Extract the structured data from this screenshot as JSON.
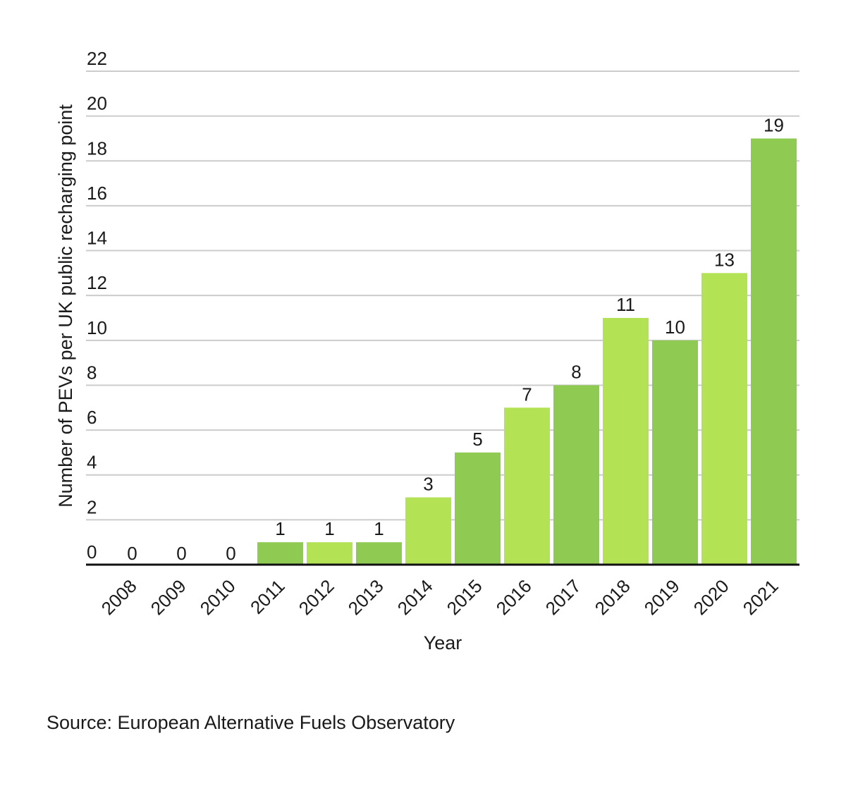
{
  "chart_data": {
    "type": "bar",
    "categories": [
      "2008",
      "2009",
      "2010",
      "2011",
      "2012",
      "2013",
      "2014",
      "2015",
      "2016",
      "2017",
      "2018",
      "2019",
      "2020",
      "2021"
    ],
    "values": [
      0,
      0,
      0,
      1,
      1,
      1,
      3,
      5,
      7,
      8,
      11,
      10,
      13,
      19
    ],
    "xlabel": "Year",
    "ylabel": "Number of PEVs per UK public recharging point",
    "ylim": [
      0,
      22
    ],
    "yticks": [
      0,
      2,
      4,
      6,
      8,
      10,
      12,
      14,
      16,
      18,
      20,
      22
    ],
    "grid": true,
    "data_labels": true
  },
  "colors": {
    "bar_dark": "#8fcb52",
    "bar_light": "#b3e255",
    "grid": "#cccccc",
    "baseline": "#111111",
    "text": "#1a1a1a"
  },
  "source": "Source: European Alternative Fuels Observatory"
}
